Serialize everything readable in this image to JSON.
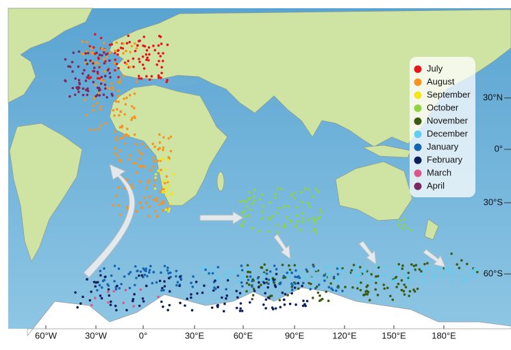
{
  "legend": [
    {
      "label": "July",
      "color": "#e8141c"
    },
    {
      "label": "August",
      "color": "#f7941d"
    },
    {
      "label": "September",
      "color": "#f5e61a"
    },
    {
      "label": "October",
      "color": "#8ed43c"
    },
    {
      "label": "November",
      "color": "#3b5a12"
    },
    {
      "label": "December",
      "color": "#5ccff2"
    },
    {
      "label": "January",
      "color": "#1565b0"
    },
    {
      "label": "February",
      "color": "#0c1f5c"
    },
    {
      "label": "March",
      "color": "#d9578c"
    },
    {
      "label": "April",
      "color": "#7a2a5e"
    }
  ],
  "longitude_labels": [
    "60°W",
    "30°W",
    "0°",
    "30°E",
    "60°E",
    "90°E",
    "120°E",
    "150°E",
    "180°E"
  ],
  "latitude_labels": [
    "30°N",
    "0°",
    "30°S",
    "60°S"
  ]
}
